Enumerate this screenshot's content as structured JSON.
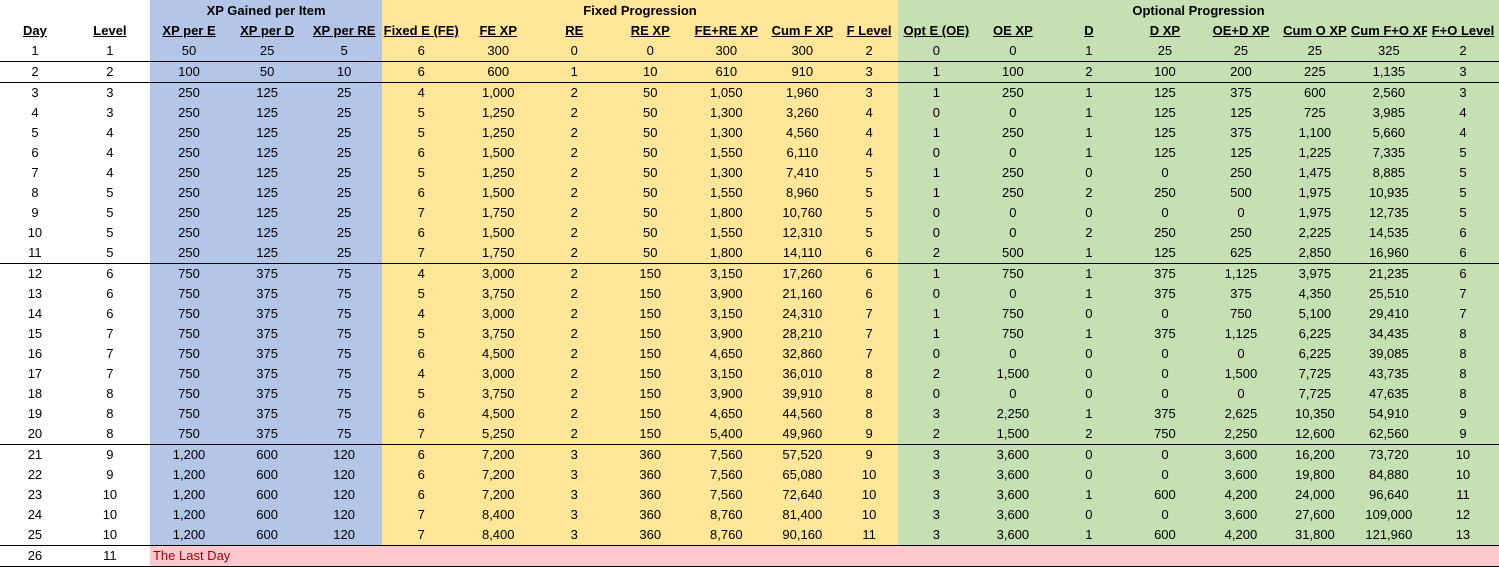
{
  "groups": {
    "xp_gained": "XP Gained per Item",
    "fixed": "Fixed Progression",
    "optional": "Optional Progression"
  },
  "headers": [
    "Day",
    "Level",
    "XP per E",
    "XP per D",
    "XP per RE",
    "Fixed E (FE)",
    "FE XP",
    "RE",
    "RE XP",
    "FE+RE XP",
    "Cum F XP",
    "F Level",
    "Opt E (OE)",
    "OE XP",
    "D",
    "D XP",
    "OE+D XP",
    "Cum O XP",
    "Cum F+O XP",
    "F+O Level"
  ],
  "rows": [
    [
      "1",
      "1",
      "50",
      "25",
      "5",
      "6",
      "300",
      "0",
      "0",
      "300",
      "300",
      "2",
      "0",
      "0",
      "1",
      "25",
      "25",
      "25",
      "325",
      "2"
    ],
    [
      "2",
      "2",
      "100",
      "50",
      "10",
      "6",
      "600",
      "1",
      "10",
      "610",
      "910",
      "3",
      "1",
      "100",
      "2",
      "100",
      "200",
      "225",
      "1,135",
      "3"
    ],
    [
      "3",
      "3",
      "250",
      "125",
      "25",
      "4",
      "1,000",
      "2",
      "50",
      "1,050",
      "1,960",
      "3",
      "1",
      "250",
      "1",
      "125",
      "375",
      "600",
      "2,560",
      "3"
    ],
    [
      "4",
      "3",
      "250",
      "125",
      "25",
      "5",
      "1,250",
      "2",
      "50",
      "1,300",
      "3,260",
      "4",
      "0",
      "0",
      "1",
      "125",
      "125",
      "725",
      "3,985",
      "4"
    ],
    [
      "5",
      "4",
      "250",
      "125",
      "25",
      "5",
      "1,250",
      "2",
      "50",
      "1,300",
      "4,560",
      "4",
      "1",
      "250",
      "1",
      "125",
      "375",
      "1,100",
      "5,660",
      "4"
    ],
    [
      "6",
      "4",
      "250",
      "125",
      "25",
      "6",
      "1,500",
      "2",
      "50",
      "1,550",
      "6,110",
      "4",
      "0",
      "0",
      "1",
      "125",
      "125",
      "1,225",
      "7,335",
      "5"
    ],
    [
      "7",
      "4",
      "250",
      "125",
      "25",
      "5",
      "1,250",
      "2",
      "50",
      "1,300",
      "7,410",
      "5",
      "1",
      "250",
      "0",
      "0",
      "250",
      "1,475",
      "8,885",
      "5"
    ],
    [
      "8",
      "5",
      "250",
      "125",
      "25",
      "6",
      "1,500",
      "2",
      "50",
      "1,550",
      "8,960",
      "5",
      "1",
      "250",
      "2",
      "250",
      "500",
      "1,975",
      "10,935",
      "5"
    ],
    [
      "9",
      "5",
      "250",
      "125",
      "25",
      "7",
      "1,750",
      "2",
      "50",
      "1,800",
      "10,760",
      "5",
      "0",
      "0",
      "0",
      "0",
      "0",
      "1,975",
      "12,735",
      "5"
    ],
    [
      "10",
      "5",
      "250",
      "125",
      "25",
      "6",
      "1,500",
      "2",
      "50",
      "1,550",
      "12,310",
      "5",
      "0",
      "0",
      "2",
      "250",
      "250",
      "2,225",
      "14,535",
      "6"
    ],
    [
      "11",
      "5",
      "250",
      "125",
      "25",
      "7",
      "1,750",
      "2",
      "50",
      "1,800",
      "14,110",
      "6",
      "2",
      "500",
      "1",
      "125",
      "625",
      "2,850",
      "16,960",
      "6"
    ],
    [
      "12",
      "6",
      "750",
      "375",
      "75",
      "4",
      "3,000",
      "2",
      "150",
      "3,150",
      "17,260",
      "6",
      "1",
      "750",
      "1",
      "375",
      "1,125",
      "3,975",
      "21,235",
      "6"
    ],
    [
      "13",
      "6",
      "750",
      "375",
      "75",
      "5",
      "3,750",
      "2",
      "150",
      "3,900",
      "21,160",
      "6",
      "0",
      "0",
      "1",
      "375",
      "375",
      "4,350",
      "25,510",
      "7"
    ],
    [
      "14",
      "6",
      "750",
      "375",
      "75",
      "4",
      "3,000",
      "2",
      "150",
      "3,150",
      "24,310",
      "7",
      "1",
      "750",
      "0",
      "0",
      "750",
      "5,100",
      "29,410",
      "7"
    ],
    [
      "15",
      "7",
      "750",
      "375",
      "75",
      "5",
      "3,750",
      "2",
      "150",
      "3,900",
      "28,210",
      "7",
      "1",
      "750",
      "1",
      "375",
      "1,125",
      "6,225",
      "34,435",
      "8"
    ],
    [
      "16",
      "7",
      "750",
      "375",
      "75",
      "6",
      "4,500",
      "2",
      "150",
      "4,650",
      "32,860",
      "7",
      "0",
      "0",
      "0",
      "0",
      "0",
      "6,225",
      "39,085",
      "8"
    ],
    [
      "17",
      "7",
      "750",
      "375",
      "75",
      "4",
      "3,000",
      "2",
      "150",
      "3,150",
      "36,010",
      "8",
      "2",
      "1,500",
      "0",
      "0",
      "1,500",
      "7,725",
      "43,735",
      "8"
    ],
    [
      "18",
      "8",
      "750",
      "375",
      "75",
      "5",
      "3,750",
      "2",
      "150",
      "3,900",
      "39,910",
      "8",
      "0",
      "0",
      "0",
      "0",
      "0",
      "7,725",
      "47,635",
      "8"
    ],
    [
      "19",
      "8",
      "750",
      "375",
      "75",
      "6",
      "4,500",
      "2",
      "150",
      "4,650",
      "44,560",
      "8",
      "3",
      "2,250",
      "1",
      "375",
      "2,625",
      "10,350",
      "54,910",
      "9"
    ],
    [
      "20",
      "8",
      "750",
      "375",
      "75",
      "7",
      "5,250",
      "2",
      "150",
      "5,400",
      "49,960",
      "9",
      "2",
      "1,500",
      "2",
      "750",
      "2,250",
      "12,600",
      "62,560",
      "9"
    ],
    [
      "21",
      "9",
      "1,200",
      "600",
      "120",
      "6",
      "7,200",
      "3",
      "360",
      "7,560",
      "57,520",
      "9",
      "3",
      "3,600",
      "0",
      "0",
      "3,600",
      "16,200",
      "73,720",
      "10"
    ],
    [
      "22",
      "9",
      "1,200",
      "600",
      "120",
      "6",
      "7,200",
      "3",
      "360",
      "7,560",
      "65,080",
      "10",
      "3",
      "3,600",
      "0",
      "0",
      "3,600",
      "19,800",
      "84,880",
      "10"
    ],
    [
      "23",
      "10",
      "1,200",
      "600",
      "120",
      "6",
      "7,200",
      "3",
      "360",
      "7,560",
      "72,640",
      "10",
      "3",
      "3,600",
      "1",
      "600",
      "4,200",
      "24,000",
      "96,640",
      "11"
    ],
    [
      "24",
      "10",
      "1,200",
      "600",
      "120",
      "7",
      "8,400",
      "3",
      "360",
      "8,760",
      "81,400",
      "10",
      "3",
      "3,600",
      "0",
      "0",
      "3,600",
      "27,600",
      "109,000",
      "12"
    ],
    [
      "25",
      "10",
      "1,200",
      "600",
      "120",
      "7",
      "8,400",
      "3",
      "360",
      "8,760",
      "90,160",
      "11",
      "3",
      "3,600",
      "1",
      "600",
      "4,200",
      "31,800",
      "121,960",
      "13"
    ]
  ],
  "last_row": {
    "day": "26",
    "level": "11",
    "note": "The Last Day"
  },
  "colors": {
    "xp_gained": "#b4c6e7",
    "fixed": "#ffe699",
    "optional": "#c6e0b4",
    "last_day_fill": "#ffc7ce",
    "last_day_text": "#9c0006"
  }
}
